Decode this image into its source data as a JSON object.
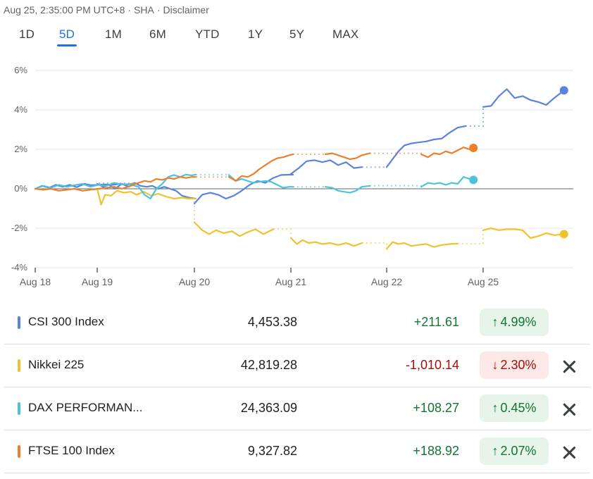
{
  "meta": {
    "timestamp": "Aug 25, 2:35:00 PM UTC+8",
    "exchange": "SHA",
    "disclaimer": "Disclaimer"
  },
  "tabs": [
    "1D",
    "5D",
    "1M",
    "6M",
    "YTD",
    "1Y",
    "5Y",
    "MAX"
  ],
  "active_tab": "5D",
  "colors": {
    "csi": "#5884e0",
    "nikkei": "#f2c12e",
    "dax": "#4bc3dd",
    "ftse": "#ec7f2b",
    "positive": "#137333",
    "negative": "#a50e0e"
  },
  "chart_data": {
    "type": "line",
    "x_ticks": [
      "Aug 18",
      "Aug 19",
      "Aug 20",
      "Aug 21",
      "Aug 22",
      "Aug 25"
    ],
    "y_ticks": [
      "6%",
      "4%",
      "2%",
      "0%",
      "-2%",
      "-4%"
    ],
    "ylim": [
      -4,
      6
    ],
    "grid": true,
    "series": [
      {
        "name": "CSI 300 Index",
        "color": "#5884e0",
        "sessions": [
          [
            [
              0.0,
              0.0
            ],
            [
              0.07,
              0.15
            ],
            [
              0.14,
              0.05
            ],
            [
              0.21,
              0.2
            ],
            [
              0.28,
              0.1
            ],
            [
              0.35,
              0.2
            ],
            [
              0.42,
              0.08
            ],
            [
              0.5,
              0.25
            ],
            [
              0.57,
              0.18
            ],
            [
              0.64,
              0.2
            ],
            [
              0.71,
              0.22
            ],
            [
              0.78,
              0.2
            ],
            [
              0.86,
              0.25
            ],
            [
              0.93,
              0.2
            ],
            [
              1.0,
              0.28
            ]
          ],
          [
            [
              0.0,
              0.25
            ],
            [
              0.06,
              0.1
            ],
            [
              0.12,
              0.2
            ],
            [
              0.18,
              0.0
            ],
            [
              0.25,
              0.25
            ],
            [
              0.32,
              0.1
            ],
            [
              0.38,
              0.3
            ],
            [
              0.44,
              0.15
            ],
            [
              0.5,
              0.1
            ],
            [
              0.56,
              0.15
            ],
            [
              0.62,
              0.0
            ],
            [
              0.68,
              0.1
            ],
            [
              0.74,
              0.0
            ],
            [
              0.8,
              -0.1
            ],
            [
              0.86,
              -0.35
            ],
            [
              0.93,
              -0.45
            ],
            [
              1.0,
              -0.5
            ]
          ],
          [
            [
              0.0,
              -0.75
            ],
            [
              0.08,
              -0.3
            ],
            [
              0.16,
              -0.2
            ],
            [
              0.24,
              -0.3
            ],
            [
              0.32,
              -0.5
            ],
            [
              0.4,
              -0.35
            ],
            [
              0.48,
              -0.1
            ],
            [
              0.56,
              0.2
            ],
            [
              0.64,
              0.4
            ],
            [
              0.72,
              0.3
            ],
            [
              0.8,
              0.55
            ],
            [
              0.88,
              0.7
            ],
            [
              1.0,
              0.72
            ]
          ],
          [
            [
              0.0,
              0.75
            ],
            [
              0.08,
              1.05
            ],
            [
              0.16,
              1.4
            ],
            [
              0.24,
              1.45
            ],
            [
              0.32,
              1.35
            ],
            [
              0.4,
              1.45
            ],
            [
              0.48,
              1.2
            ],
            [
              0.56,
              1.35
            ],
            [
              0.64,
              1.05
            ],
            [
              0.72,
              1.1
            ]
          ],
          [
            [
              0.0,
              1.1
            ],
            [
              0.06,
              1.5
            ],
            [
              0.12,
              1.9
            ],
            [
              0.18,
              2.2
            ],
            [
              0.25,
              2.3
            ],
            [
              0.32,
              2.35
            ],
            [
              0.4,
              2.4
            ],
            [
              0.48,
              2.5
            ],
            [
              0.56,
              2.55
            ],
            [
              0.64,
              2.85
            ],
            [
              0.72,
              3.1
            ],
            [
              0.8,
              3.18
            ]
          ],
          [
            [
              0.0,
              4.15
            ],
            [
              0.08,
              4.2
            ],
            [
              0.16,
              4.7
            ],
            [
              0.24,
              5.05
            ],
            [
              0.32,
              4.6
            ],
            [
              0.4,
              4.7
            ],
            [
              0.48,
              4.5
            ],
            [
              0.56,
              4.4
            ],
            [
              0.64,
              4.25
            ],
            [
              0.72,
              4.6
            ],
            [
              0.82,
              4.99
            ]
          ]
        ]
      },
      {
        "name": "Nikkei 225",
        "color": "#f2c12e",
        "sessions": [
          [],
          [
            [
              0.0,
              0.0
            ],
            [
              0.04,
              -0.8
            ],
            [
              0.08,
              -0.3
            ],
            [
              0.14,
              -0.35
            ],
            [
              0.2,
              -0.1
            ],
            [
              0.27,
              -0.2
            ],
            [
              0.34,
              -0.15
            ],
            [
              0.4,
              -0.3
            ],
            [
              0.47,
              -0.15
            ],
            [
              0.55,
              -0.35
            ],
            [
              0.62,
              -0.25
            ],
            [
              0.7,
              -0.4
            ],
            [
              0.78,
              -0.5
            ],
            [
              0.86,
              -0.45
            ],
            [
              0.93,
              -0.5
            ],
            [
              1.0,
              -0.5
            ]
          ],
          [
            [
              0.0,
              -1.7
            ],
            [
              0.08,
              -2.1
            ],
            [
              0.15,
              -2.3
            ],
            [
              0.22,
              -2.1
            ],
            [
              0.3,
              -2.25
            ],
            [
              0.38,
              -2.15
            ],
            [
              0.46,
              -2.4
            ],
            [
              0.54,
              -2.2
            ],
            [
              0.62,
              -2.05
            ],
            [
              0.7,
              -2.3
            ],
            [
              0.8,
              -2.05
            ]
          ],
          [
            [
              0.0,
              -2.5
            ],
            [
              0.06,
              -2.8
            ],
            [
              0.12,
              -2.6
            ],
            [
              0.18,
              -2.75
            ],
            [
              0.25,
              -2.7
            ],
            [
              0.32,
              -2.8
            ],
            [
              0.4,
              -2.75
            ],
            [
              0.48,
              -2.85
            ],
            [
              0.56,
              -2.75
            ],
            [
              0.64,
              -2.9
            ],
            [
              0.72,
              -2.75
            ]
          ],
          [
            [
              0.0,
              -3.05
            ],
            [
              0.06,
              -2.7
            ],
            [
              0.12,
              -2.8
            ],
            [
              0.18,
              -2.75
            ],
            [
              0.25,
              -2.9
            ],
            [
              0.32,
              -2.85
            ],
            [
              0.4,
              -2.8
            ],
            [
              0.48,
              -2.95
            ],
            [
              0.56,
              -2.85
            ],
            [
              0.64,
              -2.8
            ],
            [
              0.72,
              -2.78
            ]
          ],
          [
            [
              0.0,
              -2.1
            ],
            [
              0.08,
              -2.0
            ],
            [
              0.16,
              -2.1
            ],
            [
              0.24,
              -2.05
            ],
            [
              0.32,
              -2.05
            ],
            [
              0.4,
              -2.1
            ],
            [
              0.48,
              -2.5
            ],
            [
              0.56,
              -2.4
            ],
            [
              0.64,
              -2.25
            ],
            [
              0.72,
              -2.35
            ],
            [
              0.82,
              -2.3
            ]
          ]
        ]
      },
      {
        "name": "DAX PERFORMAN...",
        "color": "#4bc3dd",
        "sessions": [
          [
            [
              0.0,
              0.0
            ],
            [
              0.08,
              0.15
            ],
            [
              0.16,
              0.05
            ],
            [
              0.24,
              0.2
            ],
            [
              0.32,
              0.1
            ],
            [
              0.4,
              0.18
            ],
            [
              0.48,
              0.25
            ],
            [
              0.56,
              0.1
            ],
            [
              0.64,
              0.2
            ],
            [
              0.72,
              0.15
            ],
            [
              0.8,
              0.3
            ],
            [
              0.88,
              0.22
            ],
            [
              1.0,
              0.25
            ]
          ],
          [
            [
              0.35,
              0.2
            ],
            [
              0.42,
              0.1
            ],
            [
              0.48,
              -0.3
            ],
            [
              0.54,
              -0.5
            ],
            [
              0.6,
              0.0
            ],
            [
              0.66,
              0.25
            ],
            [
              0.72,
              0.6
            ],
            [
              0.78,
              0.7
            ],
            [
              0.84,
              0.6
            ],
            [
              0.9,
              0.72
            ],
            [
              0.96,
              0.68
            ],
            [
              1.0,
              0.72
            ]
          ],
          [
            [
              0.35,
              0.7
            ],
            [
              0.42,
              0.4
            ],
            [
              0.48,
              0.5
            ],
            [
              0.54,
              0.4
            ],
            [
              0.6,
              0.3
            ],
            [
              0.66,
              0.35
            ],
            [
              0.72,
              0.4
            ],
            [
              0.78,
              0.35
            ],
            [
              0.84,
              0.2
            ],
            [
              0.9,
              0.05
            ],
            [
              0.96,
              0.1
            ],
            [
              1.0,
              0.1
            ]
          ],
          [
            [
              0.35,
              0.1
            ],
            [
              0.42,
              0.05
            ],
            [
              0.48,
              -0.1
            ],
            [
              0.54,
              -0.15
            ],
            [
              0.6,
              -0.2
            ],
            [
              0.66,
              -0.1
            ],
            [
              0.72,
              0.1
            ],
            [
              0.8,
              0.15
            ]
          ],
          [
            [
              0.35,
              0.1
            ],
            [
              0.42,
              0.3
            ],
            [
              0.48,
              0.25
            ],
            [
              0.54,
              0.3
            ],
            [
              0.6,
              0.2
            ],
            [
              0.66,
              0.3
            ],
            [
              0.72,
              0.25
            ],
            [
              0.78,
              0.6
            ],
            [
              0.84,
              0.5
            ],
            [
              0.88,
              0.45
            ]
          ],
          []
        ]
      },
      {
        "name": "FTSE 100 Index",
        "color": "#ec7f2b",
        "sessions": [
          [
            [
              0.0,
              0.0
            ],
            [
              0.08,
              -0.05
            ],
            [
              0.16,
              0.0
            ],
            [
              0.24,
              -0.1
            ],
            [
              0.32,
              -0.05
            ],
            [
              0.4,
              0.0
            ],
            [
              0.48,
              -0.1
            ],
            [
              0.56,
              -0.05
            ],
            [
              0.64,
              0.0
            ],
            [
              0.72,
              0.05
            ],
            [
              0.8,
              0.1
            ],
            [
              0.88,
              0.0
            ],
            [
              1.0,
              0.2
            ]
          ],
          [
            [
              0.35,
              0.2
            ],
            [
              0.42,
              0.3
            ],
            [
              0.48,
              0.4
            ],
            [
              0.54,
              0.35
            ],
            [
              0.6,
              0.5
            ],
            [
              0.66,
              0.45
            ],
            [
              0.72,
              0.55
            ],
            [
              0.78,
              0.5
            ],
            [
              0.84,
              0.6
            ],
            [
              0.9,
              0.55
            ],
            [
              0.96,
              0.6
            ],
            [
              1.0,
              0.6
            ]
          ],
          [
            [
              0.35,
              0.6
            ],
            [
              0.42,
              0.4
            ],
            [
              0.48,
              0.65
            ],
            [
              0.54,
              0.6
            ],
            [
              0.6,
              0.75
            ],
            [
              0.66,
              1.0
            ],
            [
              0.72,
              1.2
            ],
            [
              0.78,
              1.4
            ],
            [
              0.84,
              1.55
            ],
            [
              0.9,
              1.6
            ],
            [
              0.96,
              1.7
            ],
            [
              1.0,
              1.75
            ]
          ],
          [
            [
              0.35,
              1.75
            ],
            [
              0.42,
              1.8
            ],
            [
              0.48,
              1.7
            ],
            [
              0.54,
              1.6
            ],
            [
              0.6,
              1.5
            ],
            [
              0.66,
              1.55
            ],
            [
              0.72,
              1.7
            ],
            [
              0.8,
              1.8
            ]
          ],
          [
            [
              0.35,
              1.75
            ],
            [
              0.42,
              1.6
            ],
            [
              0.48,
              1.8
            ],
            [
              0.54,
              1.75
            ],
            [
              0.6,
              1.9
            ],
            [
              0.66,
              1.8
            ],
            [
              0.72,
              1.95
            ],
            [
              0.78,
              2.1
            ],
            [
              0.84,
              2.0
            ],
            [
              0.88,
              2.07
            ]
          ],
          []
        ]
      }
    ]
  },
  "table": [
    {
      "name": "CSI 300 Index",
      "price": "4,453.38",
      "change": "+211.61",
      "percent": "4.99%",
      "direction": "up",
      "arrow": "↑",
      "color": "#5884e0",
      "removable": false
    },
    {
      "name": "Nikkei 225",
      "price": "42,819.28",
      "change": "-1,010.14",
      "percent": "2.30%",
      "direction": "down",
      "arrow": "↓",
      "color": "#f2c12e",
      "removable": true
    },
    {
      "name": "DAX PERFORMAN...",
      "price": "24,363.09",
      "change": "+108.27",
      "percent": "0.45%",
      "direction": "up",
      "arrow": "↑",
      "color": "#4bc3dd",
      "removable": true
    },
    {
      "name": "FTSE 100 Index",
      "price": "9,327.82",
      "change": "+188.92",
      "percent": "2.07%",
      "direction": "up",
      "arrow": "↑",
      "color": "#ec7f2b",
      "removable": true
    }
  ]
}
